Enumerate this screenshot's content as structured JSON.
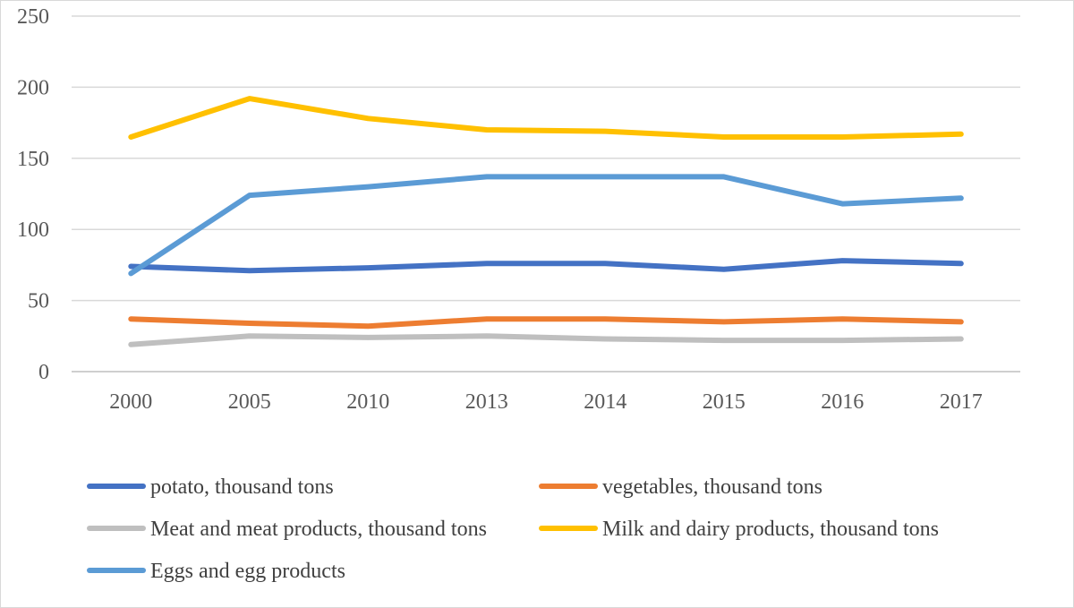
{
  "chart_data": {
    "type": "line",
    "title": "",
    "xlabel": "",
    "ylabel": "",
    "categories": [
      "2000",
      "2005",
      "2010",
      "2013",
      "2014",
      "2015",
      "2016",
      "2017"
    ],
    "ylim": [
      0,
      250
    ],
    "yticks": [
      "0",
      "50",
      "100",
      "150",
      "200",
      "250"
    ],
    "grid": true,
    "legend_position": "bottom",
    "series": [
      {
        "name": "potato, thousand tons",
        "color": "#4472C4",
        "values": [
          74,
          71,
          73,
          76,
          76,
          72,
          78,
          76
        ]
      },
      {
        "name": "vegetables, thousand tons",
        "color": "#ED7D31",
        "values": [
          37,
          34,
          32,
          37,
          37,
          35,
          37,
          35
        ]
      },
      {
        "name": "Meat and meat products, thousand tons",
        "color": "#BFBFBF",
        "values": [
          19,
          25,
          24,
          25,
          23,
          22,
          22,
          23
        ]
      },
      {
        "name": "Milk and dairy products, thousand tons",
        "color": "#FFC000",
        "values": [
          165,
          192,
          178,
          170,
          169,
          165,
          165,
          167
        ]
      },
      {
        "name": "Eggs and egg products",
        "color": "#5B9BD5",
        "values": [
          69,
          124,
          130,
          137,
          137,
          137,
          118,
          122
        ]
      }
    ]
  }
}
